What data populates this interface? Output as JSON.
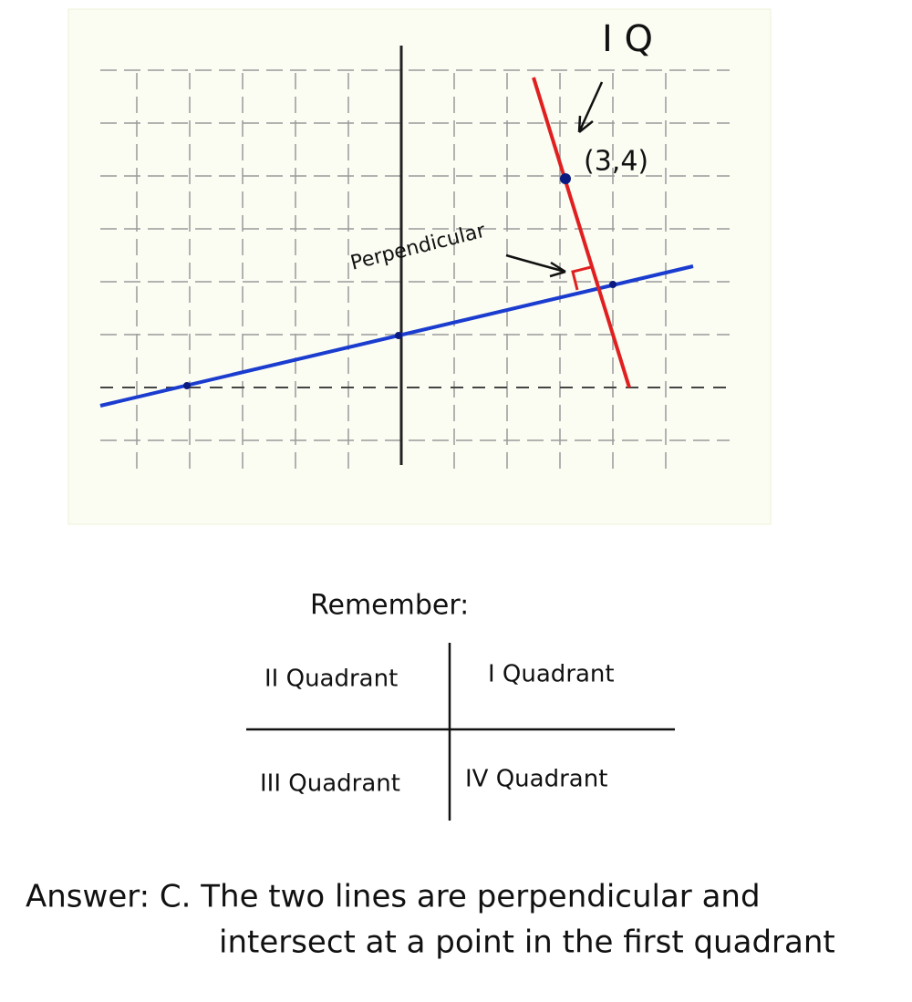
{
  "graph": {
    "quadrant_mark": "I Q",
    "point_label": "(3,4)",
    "annotation": "Perpendicular"
  },
  "remember": {
    "title": "Remember:",
    "quadrants": [
      "II Quadrant",
      "I Quadrant",
      "III Quadrant",
      "IV Quadrant"
    ]
  },
  "answer": {
    "lines": [
      "Answer: C. The two lines are perpendicular and",
      "intersect at a point in the first quadrant"
    ]
  }
}
